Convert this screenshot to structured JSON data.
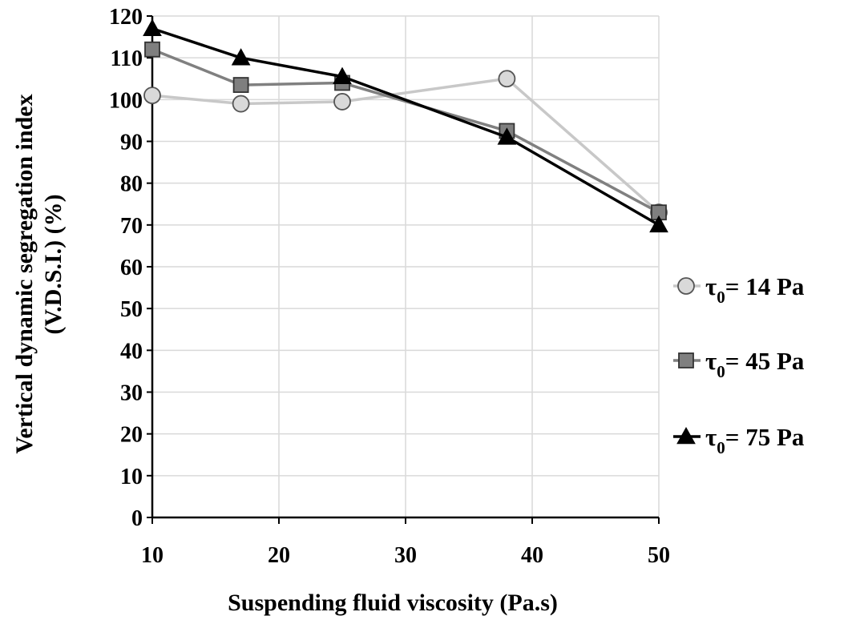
{
  "chart_data": {
    "type": "line",
    "title": "",
    "xlabel": "Suspending fluid viscosity (Pa.s)",
    "ylabel_line1": "Vertical dynamic segregation index",
    "ylabel_line2": "(V.D.S.I.) (%)",
    "xlim": [
      10,
      50
    ],
    "ylim": [
      0,
      120
    ],
    "xticks": [
      10,
      20,
      30,
      40,
      50
    ],
    "yticks": [
      0,
      10,
      20,
      30,
      40,
      50,
      60,
      70,
      80,
      90,
      100,
      110,
      120
    ],
    "grid": true,
    "legend_position": "right",
    "x": [
      10,
      17,
      25,
      38,
      50
    ],
    "series": [
      {
        "name_prefix": "τ",
        "name_sub": "0",
        "name_suffix": "= 14 Pa",
        "values": [
          101,
          99,
          99.5,
          105,
          73
        ],
        "marker": "circle",
        "line_color": "#c8c8c8",
        "marker_fill": "#d9d9d9"
      },
      {
        "name_prefix": "τ",
        "name_sub": "0",
        "name_suffix": "= 45 Pa",
        "values": [
          112,
          103.5,
          104,
          92.5,
          73
        ],
        "marker": "square",
        "line_color": "#808080",
        "marker_fill": "#7f7f7f"
      },
      {
        "name_prefix": "τ",
        "name_sub": "0",
        "name_suffix": "= 75 Pa",
        "values": [
          117,
          110,
          105.5,
          91,
          70
        ],
        "marker": "triangle",
        "line_color": "#000000",
        "marker_fill": "#000000"
      }
    ]
  }
}
